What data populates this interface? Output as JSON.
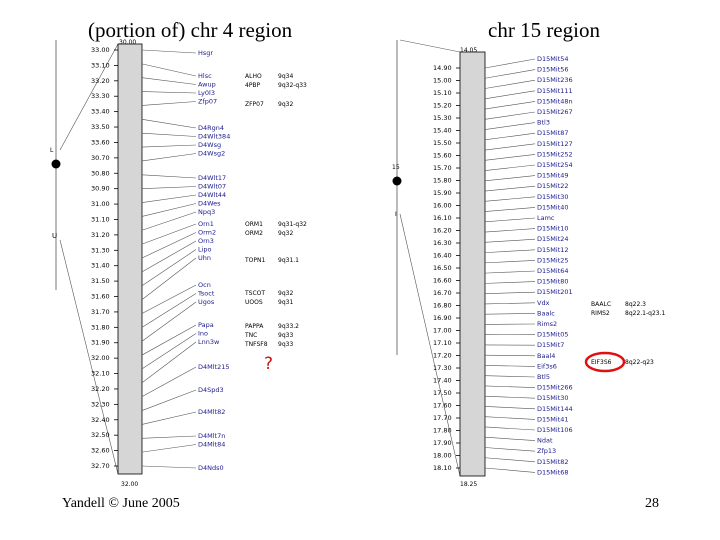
{
  "titles": {
    "left": "(portion of) chr 4 region",
    "right": "chr 15 region"
  },
  "footer": {
    "left": "Yandell © June 2005",
    "right": "28"
  },
  "question_mark": "?",
  "chr4": {
    "top_label": "30.00",
    "bottom_label": "32.00",
    "positions": [
      "33.00",
      "33.10",
      "33.20",
      "33.30",
      "33.40",
      "33.50",
      "33.60",
      "30.70",
      "30.80",
      "30.90",
      "31.00",
      "31.10",
      "31.20",
      "31.30",
      "31.40",
      "31.50",
      "31.60",
      "31.70",
      "31.80",
      "31.90",
      "32.00",
      "32.10",
      "32.20",
      "32.30",
      "32.40",
      "32.50",
      "32.60",
      "32.70"
    ],
    "genes": [
      "Hsgr",
      "Hlsc",
      "Awup",
      "Ly0l3",
      "Zfp07",
      "D4Rgn4",
      "D4Wlt384",
      "D4Wsg",
      "D4Wsg2",
      "D4Wlt17",
      "D4Wlt07",
      "D4Wlt44",
      "D4Wes",
      "Npq3",
      "Orn1",
      "Orm2",
      "Orn3",
      "Lipo",
      "Uhn",
      "Ocn",
      "Tsoct",
      "Ugos",
      "Papa",
      "Ino",
      "Lnn3w",
      "D4Mlt215",
      "D4Spd3",
      "D4Mlt82",
      "D4Mlt7n",
      "D4Mlt84",
      "D4Nds0"
    ],
    "orthologs": [
      {
        "gene": "ALHO",
        "loc": "9q34"
      },
      {
        "gene": "4PBP",
        "loc": "9q32-q33"
      },
      {
        "gene": "ZFP07",
        "loc": "9q32"
      },
      {
        "gene": "ORM1",
        "loc": "9q31-q32"
      },
      {
        "gene": "ORM2",
        "loc": "9q32"
      },
      {
        "gene": "TOPN1",
        "loc": "9q31.1"
      },
      {
        "gene": "TSCOT",
        "loc": "9q32"
      },
      {
        "gene": "UOOS",
        "loc": "9q31"
      },
      {
        "gene": "PAPPA",
        "loc": "9q33.2"
      },
      {
        "gene": "TNC",
        "loc": "9q33"
      },
      {
        "gene": "TNFSF8",
        "loc": "9q33"
      }
    ],
    "markers": [
      "L",
      "U"
    ]
  },
  "chr15": {
    "top_label": "14.05",
    "bottom_label": "18.25",
    "positions": [
      "14.90",
      "15.00",
      "15.10",
      "15.20",
      "15.30",
      "15.40",
      "15.50",
      "15.60",
      "15.70",
      "15.80",
      "15.90",
      "16.00",
      "16.10",
      "16.20",
      "16.30",
      "16.40",
      "16.50",
      "16.60",
      "16.70",
      "16.80",
      "16.90",
      "17.00",
      "17.10",
      "17.20",
      "17.30",
      "17.40",
      "17.50",
      "17.60",
      "17.70",
      "17.80",
      "17.90",
      "18.00",
      "18.10"
    ],
    "genes": [
      "D15Mit54",
      "D15Mit56",
      "D15Mit236",
      "D15Mit111",
      "D15Mit48n",
      "D15Mit267",
      "Btl3",
      "D15Mit87",
      "D15Mit127",
      "D15Mit252",
      "D15Mit254",
      "D15Mit49",
      "D15Mit22",
      "D15Mit30",
      "D15Mit40",
      "Lamc",
      "D15Mit10",
      "D15Mit24",
      "D15Mit12",
      "D15Mit25",
      "D15Mit64",
      "D15Mit80",
      "D15Mit201",
      "Vdx",
      "Baalc",
      "Rims2",
      "D15Mit05",
      "D15Mit7",
      "Baal4",
      "Eif3s6",
      "Btl5",
      "D15Mit266",
      "D15Mit30",
      "D15Mit144",
      "D15Mit41",
      "D15Mit106",
      "Ndat",
      "Zfp13",
      "D15Mit82",
      "D15Mit68"
    ],
    "orthologs": [
      {
        "gene": "BAALC",
        "loc": "8q22.3"
      },
      {
        "gene": "RIMS2",
        "loc": "8q22.1-q23.1"
      },
      {
        "gene": "EIF3S6",
        "loc": "8q22-q23"
      }
    ],
    "markers": [
      "15",
      "I"
    ]
  },
  "colors": {
    "chromosome": "#d6d6d6",
    "gene_text": "#1a1a8c",
    "highlight": "#e01010"
  }
}
